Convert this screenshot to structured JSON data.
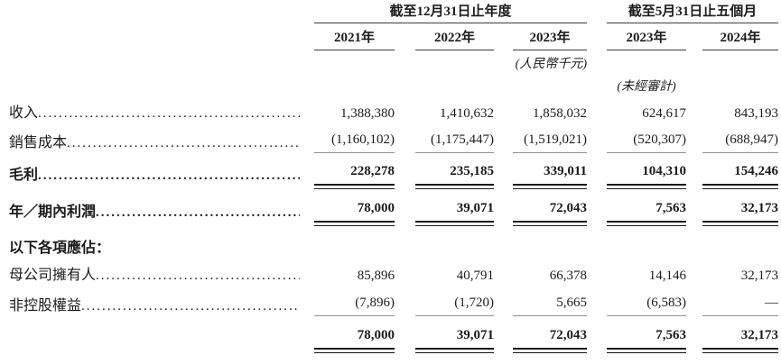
{
  "page": {
    "background": "#ffffff",
    "text_color": "#1c1c1c",
    "thin_rule_color": "#8f8f8f",
    "dark_rule_color": "#161616"
  },
  "table": {
    "dot_leader": "................................................................................",
    "header": {
      "period_groups": [
        {
          "label": "截至12月31日止年度"
        },
        {
          "label": "截至5月31日止五個月"
        }
      ],
      "years": [
        "2021年",
        "2022年",
        "2023年",
        "2023年",
        "2024年"
      ],
      "currency_note": "(人民幣千元)",
      "unaudited_note": "(未經審計)"
    },
    "rows": [
      {
        "label": "收入",
        "values": [
          "1,388,380",
          "1,410,632",
          "1,858,032",
          "624,617",
          "843,193"
        ]
      },
      {
        "label": "銷售成本",
        "values": [
          "(1,160,102)",
          "(1,175,447)",
          "(1,519,021)",
          "(520,307)",
          "(688,947)"
        ]
      },
      {
        "label": "毛利",
        "values": [
          "228,278",
          "235,185",
          "339,011",
          "104,310",
          "154,246"
        ]
      },
      {
        "label": "年／期內利潤",
        "values": [
          "78,000",
          "39,071",
          "72,043",
          "7,563",
          "32,173"
        ]
      },
      {
        "label": "以下各項應佔：",
        "values": []
      },
      {
        "label": "母公司擁有人",
        "values": [
          "85,896",
          "40,791",
          "66,378",
          "14,146",
          "32,173"
        ]
      },
      {
        "label": "非控股權益",
        "values": [
          "(7,896)",
          "(1,720)",
          "5,665",
          "(6,583)",
          "—"
        ]
      },
      {
        "label": "",
        "values": [
          "78,000",
          "39,071",
          "72,043",
          "7,563",
          "32,173"
        ]
      }
    ]
  }
}
